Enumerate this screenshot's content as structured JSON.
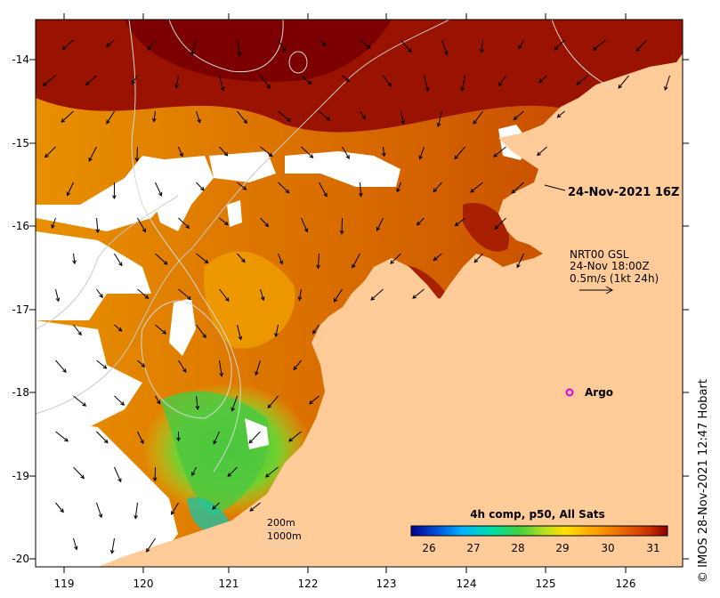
{
  "map": {
    "lon_ticks": [
      "119",
      "120",
      "121",
      "122",
      "123",
      "124",
      "125",
      "126"
    ],
    "lat_ticks": [
      "-14",
      "-15",
      "-16",
      "-17",
      "-18",
      "-19",
      "-20"
    ],
    "timestamp_label": "24-Nov-2021 16Z",
    "current_legend": {
      "line1": "NRT00 GSL",
      "line2": "24-Nov 18:00Z",
      "line3": "0.5m/s (1kt 24h)"
    },
    "argo_label": "Argo",
    "isobath_labels": [
      "200m",
      "1000m"
    ],
    "colorbar": {
      "title": "4h comp, p50, All Sats",
      "ticks": [
        "26",
        "27",
        "28",
        "29",
        "30",
        "31"
      ],
      "colors": [
        "#00008c",
        "#0050dc",
        "#00b4ff",
        "#00e0a0",
        "#40d040",
        "#b8e020",
        "#ffe000",
        "#ffa000",
        "#e86000",
        "#c83000",
        "#8b0000"
      ]
    },
    "credit": "© IMOS 28-Nov-2021 12:47 Hobart",
    "colors": {
      "land": "#ffcc99",
      "cloud": "#ffffff",
      "argo": "#e000e0",
      "isobath": "#c8c8c8"
    }
  }
}
